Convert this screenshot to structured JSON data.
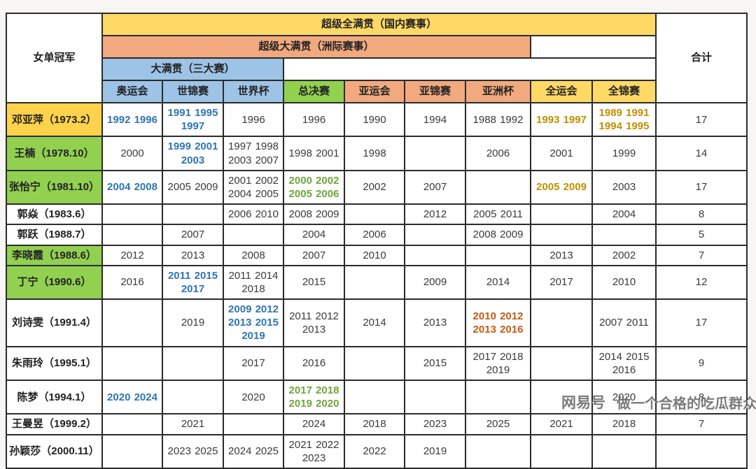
{
  "header": {
    "champion_label": "女单冠军",
    "total_label": "合计",
    "tier1_label": "超级全满贯（国内赛事）",
    "tier2_label": "超级大满贯（洲际赛事）",
    "tier3_label": "大满贯（三大赛）",
    "columns": [
      "奥运会",
      "世锦赛",
      "世界杯",
      "总决赛",
      "亚运会",
      "亚锦赛",
      "亚洲杯",
      "全运会",
      "全锦赛"
    ]
  },
  "colors": {
    "tier1_bg": "#FFD966",
    "tier2_bg": "#F2A97E",
    "tier3_bg": "#9DC3E6",
    "finals_bg": "#92D050",
    "gold_name_bg": "#FFD24B",
    "green_name_bg": "#92D050",
    "blue_text": "#2E75B6",
    "gold_text": "#BF9000",
    "green_text": "#6FA53C",
    "orange_text": "#C55A11"
  },
  "rows": [
    {
      "name": "邓亚萍（1973.2）",
      "name_bg": "gold",
      "cells": [
        {
          "t": "1992 1996",
          "c": "blue"
        },
        {
          "t": "1991 1995 1997",
          "c": "blue"
        },
        {
          "t": "1996"
        },
        {
          "t": "1996"
        },
        {
          "t": "1990"
        },
        {
          "t": "1994"
        },
        {
          "t": "1988 1992"
        },
        {
          "t": "1993 1997",
          "c": "gold"
        },
        {
          "t": "1989 1991 1994 1995",
          "c": "gold"
        }
      ],
      "total": "17"
    },
    {
      "name": "王楠（1978.10）",
      "name_bg": "green",
      "cells": [
        {
          "t": "2000"
        },
        {
          "t": "1999 2001 2003",
          "c": "blue"
        },
        {
          "t": "1997 1998 2003 2007"
        },
        {
          "t": "1998 2001"
        },
        {
          "t": "1998"
        },
        {
          "t": ""
        },
        {
          "t": "2006"
        },
        {
          "t": "2001"
        },
        {
          "t": "1999"
        }
      ],
      "total": "14"
    },
    {
      "name": "张怡宁（1981.10）",
      "name_bg": "green",
      "cells": [
        {
          "t": "2004 2008",
          "c": "blue"
        },
        {
          "t": "2005 2009"
        },
        {
          "t": "2001 2002 2004 2005"
        },
        {
          "t": "2000 2002 2005 2006",
          "c": "green"
        },
        {
          "t": "2002"
        },
        {
          "t": "2007"
        },
        {
          "t": ""
        },
        {
          "t": "2005 2009",
          "c": "gold"
        },
        {
          "t": "2003"
        }
      ],
      "total": "17"
    },
    {
      "name": "郭焱（1983.6）",
      "name_bg": "white",
      "cells": [
        {
          "t": ""
        },
        {
          "t": ""
        },
        {
          "t": "2006 2010"
        },
        {
          "t": "2008 2009"
        },
        {
          "t": ""
        },
        {
          "t": "2012"
        },
        {
          "t": "2005 2011"
        },
        {
          "t": ""
        },
        {
          "t": "2004"
        }
      ],
      "total": "8"
    },
    {
      "name": "郭跃（1988.7）",
      "name_bg": "white",
      "cells": [
        {
          "t": ""
        },
        {
          "t": "2007"
        },
        {
          "t": ""
        },
        {
          "t": "2004"
        },
        {
          "t": "2006"
        },
        {
          "t": ""
        },
        {
          "t": "2008 2009"
        },
        {
          "t": ""
        },
        {
          "t": ""
        }
      ],
      "total": "5"
    },
    {
      "name": "李晓霞（1988.6）",
      "name_bg": "green",
      "cells": [
        {
          "t": "2012"
        },
        {
          "t": "2013"
        },
        {
          "t": "2008"
        },
        {
          "t": "2007"
        },
        {
          "t": "2010"
        },
        {
          "t": ""
        },
        {
          "t": ""
        },
        {
          "t": "2013"
        },
        {
          "t": "2002"
        }
      ],
      "total": "7"
    },
    {
      "name": "丁宁（1990.6）",
      "name_bg": "green",
      "cells": [
        {
          "t": "2016"
        },
        {
          "t": "2011 2015 2017",
          "c": "blue"
        },
        {
          "t": "2011 2014 2018"
        },
        {
          "t": "2015"
        },
        {
          "t": ""
        },
        {
          "t": "2009"
        },
        {
          "t": "2014"
        },
        {
          "t": "2017"
        },
        {
          "t": "2010"
        }
      ],
      "total": "12"
    },
    {
      "name": "刘诗雯（1991.4）",
      "name_bg": "white",
      "cells": [
        {
          "t": ""
        },
        {
          "t": "2019"
        },
        {
          "t": "2009 2012 2013 2015 2019",
          "c": "blue"
        },
        {
          "t": "2011 2012 2013"
        },
        {
          "t": "2014"
        },
        {
          "t": "2013"
        },
        {
          "t": "2010 2012 2013 2016",
          "c": "orange"
        },
        {
          "t": ""
        },
        {
          "t": "2007 2011"
        }
      ],
      "total": "17"
    },
    {
      "name": "朱雨玲（1995.1）",
      "name_bg": "white",
      "cells": [
        {
          "t": ""
        },
        {
          "t": ""
        },
        {
          "t": "2017"
        },
        {
          "t": "2016"
        },
        {
          "t": ""
        },
        {
          "t": "2015"
        },
        {
          "t": "2017 2018 2019"
        },
        {
          "t": ""
        },
        {
          "t": "2014 2015 2016"
        }
      ],
      "total": "9"
    },
    {
      "name": "陈梦（1994.1）",
      "name_bg": "white",
      "cells": [
        {
          "t": "2020 2024",
          "c": "blue"
        },
        {
          "t": ""
        },
        {
          "t": "2020"
        },
        {
          "t": "2017 2018 2019 2020",
          "c": "green"
        },
        {
          "t": ""
        },
        {
          "t": ""
        },
        {
          "t": ""
        },
        {
          "t": ""
        },
        {
          "t": "2020"
        }
      ],
      "total": "8"
    },
    {
      "name": "王曼昱（1999.2）",
      "name_bg": "white",
      "cells": [
        {
          "t": ""
        },
        {
          "t": "2021"
        },
        {
          "t": ""
        },
        {
          "t": "2024"
        },
        {
          "t": "2018"
        },
        {
          "t": "2023"
        },
        {
          "t": "2025"
        },
        {
          "t": "2021"
        },
        {
          "t": "2018"
        }
      ],
      "total": "7"
    },
    {
      "name": "孙颖莎（2000.11）",
      "name_bg": "white",
      "cells": [
        {
          "t": ""
        },
        {
          "t": "2023 2025"
        },
        {
          "t": "2024 2025"
        },
        {
          "t": "2021 2022 2023"
        },
        {
          "t": "2022"
        },
        {
          "t": "2019"
        },
        {
          "t": ""
        },
        {
          "t": ""
        },
        {
          "t": ""
        }
      ],
      "total": ""
    }
  ],
  "watermark": {
    "brand": "网易号",
    "slogan": "做一个合格的吃瓜群众"
  }
}
